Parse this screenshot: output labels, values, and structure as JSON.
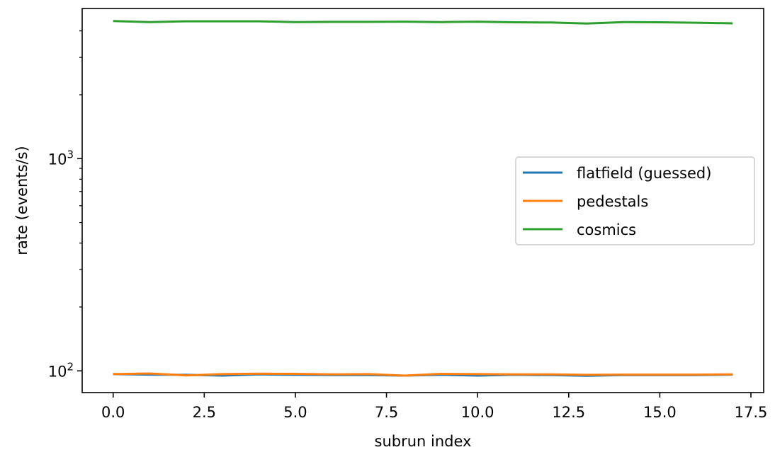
{
  "chart_data": {
    "type": "line",
    "title": "",
    "xlabel": "subrun index",
    "ylabel": "rate (events/s)",
    "yscale": "log",
    "xlim": [
      -0.85,
      17.85
    ],
    "ylim": [
      79,
      5100
    ],
    "x_ticks": [
      0.0,
      2.5,
      5.0,
      7.5,
      10.0,
      12.5,
      15.0,
      17.5
    ],
    "x_tick_labels": [
      "0.0",
      "2.5",
      "5.0",
      "7.5",
      "10.0",
      "12.5",
      "15.0",
      "17.5"
    ],
    "y_major_ticks": [
      100,
      1000
    ],
    "y_major_exponents": [
      "2",
      "3"
    ],
    "y_minor_ticks": [
      200,
      300,
      400,
      500,
      600,
      700,
      800,
      900,
      2000,
      3000,
      4000
    ],
    "grid": false,
    "legend_position": "center-right",
    "x": [
      0,
      1,
      2,
      3,
      4,
      5,
      6,
      7,
      8,
      9,
      10,
      11,
      12,
      13,
      14,
      15,
      16,
      17
    ],
    "series": [
      {
        "name": "flatfield (guessed)",
        "color": "#1f77b4",
        "values": [
          96.5,
          96.0,
          95.8,
          95.0,
          96.2,
          95.8,
          95.5,
          95.5,
          95.0,
          95.8,
          95.0,
          95.8,
          95.5,
          94.8,
          95.5,
          95.5,
          95.5,
          96.0
        ]
      },
      {
        "name": "pedestals",
        "color": "#ff7f0e",
        "values": [
          96.5,
          97.2,
          95.2,
          96.5,
          97.0,
          96.8,
          96.2,
          96.5,
          95.0,
          96.8,
          96.5,
          96.2,
          96.2,
          95.8,
          96.0,
          96.0,
          96.0,
          96.2
        ]
      },
      {
        "name": "cosmics",
        "color": "#2ca02c",
        "values": [
          4450,
          4400,
          4440,
          4440,
          4440,
          4400,
          4410,
          4410,
          4420,
          4400,
          4420,
          4390,
          4380,
          4330,
          4400,
          4390,
          4370,
          4340
        ]
      }
    ]
  }
}
